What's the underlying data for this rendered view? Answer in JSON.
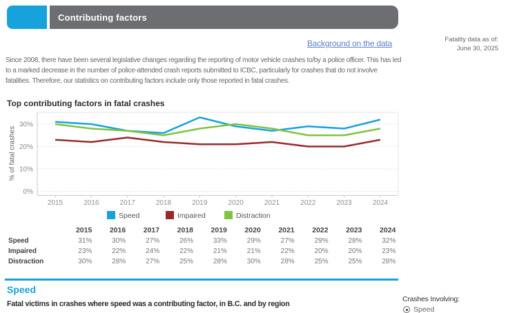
{
  "header": {
    "title": "Contributing factors",
    "accent_color": "#17A2DC",
    "bar_color": "#6D6E71"
  },
  "links": {
    "background": "Background on the data",
    "link_color": "#5F83CC"
  },
  "meta": {
    "fatality_line1": "Fatality data as of:",
    "fatality_line2": "June 30, 2025"
  },
  "intro": {
    "lines": [
      "Since 2008, there have been several legislative changes regarding the reporting of motor vehicle crashes to/by a police officer. This has led",
      "to a marked decrease in the number of police-attended crash reports submitted to ICBC, particularly for crashes that do not involve",
      "fatalities. Therefore, our statistics on contributing factors include only those reported in fatal crashes."
    ]
  },
  "chart_title": "Top contributing factors in fatal crashes",
  "chart_data": {
    "type": "line",
    "x": [
      2015,
      2016,
      2017,
      2018,
      2019,
      2020,
      2021,
      2022,
      2023,
      2024
    ],
    "series": [
      {
        "name": "Speed",
        "color": "#17A2DC",
        "values": [
          31,
          30,
          27,
          26,
          33,
          29,
          27,
          29,
          28,
          32
        ]
      },
      {
        "name": "Impaired",
        "color": "#97292C",
        "values": [
          23,
          22,
          24,
          22,
          21,
          21,
          22,
          20,
          20,
          23
        ]
      },
      {
        "name": "Distraction",
        "color": "#7EC342",
        "values": [
          30,
          28,
          27,
          25,
          28,
          30,
          28,
          25,
          25,
          28
        ]
      }
    ],
    "ylabel": "% of fatal crashes",
    "yticks": [
      0,
      10,
      20,
      30
    ],
    "ytick_labels": [
      "0%",
      "10%",
      "20%",
      "30%"
    ],
    "ylim": [
      0,
      35
    ],
    "grid": true,
    "legend_position": "bottom"
  },
  "table": {
    "columns": [
      "2015",
      "2016",
      "2017",
      "2018",
      "2019",
      "2020",
      "2021",
      "2022",
      "2023",
      "2024"
    ],
    "rows": [
      {
        "label": "Speed",
        "values": [
          "31%",
          "30%",
          "27%",
          "26%",
          "33%",
          "29%",
          "27%",
          "29%",
          "28%",
          "32%"
        ]
      },
      {
        "label": "Impaired",
        "values": [
          "23%",
          "22%",
          "24%",
          "22%",
          "21%",
          "21%",
          "22%",
          "20%",
          "20%",
          "23%"
        ]
      },
      {
        "label": "Distraction",
        "values": [
          "30%",
          "28%",
          "27%",
          "25%",
          "28%",
          "30%",
          "28%",
          "25%",
          "25%",
          "28%"
        ]
      }
    ]
  },
  "section": {
    "title": "Speed",
    "subtitle": "Fatal victims in crashes where speed was a contributing factor, in B.C. and by region"
  },
  "controls": {
    "label": "Crashes Involving:",
    "options": [
      {
        "label": "Speed",
        "selected": true
      }
    ]
  }
}
